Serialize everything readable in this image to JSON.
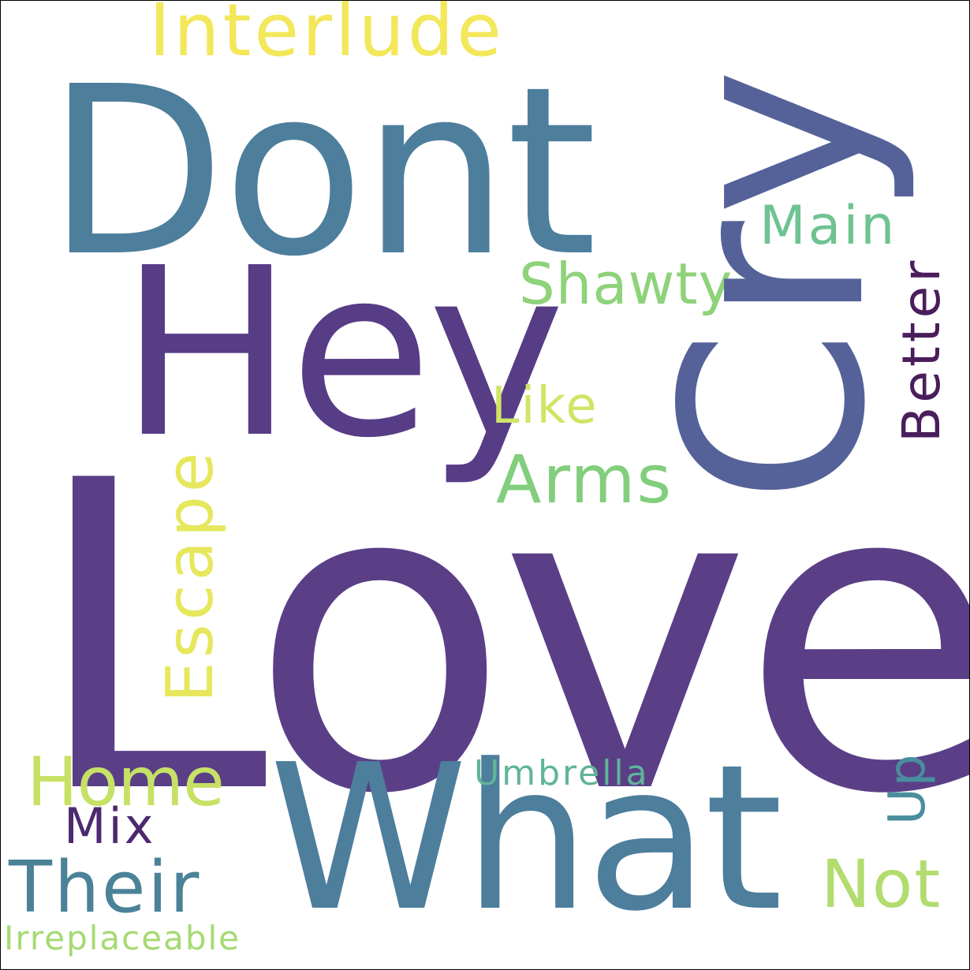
{
  "words": {
    "love": {
      "text": "Love",
      "color": "#5a3f87"
    },
    "dont": {
      "text": "Dont",
      "color": "#4d7e9c"
    },
    "cry": {
      "text": "Cry",
      "color": "#556299"
    },
    "hey": {
      "text": "Hey",
      "color": "#573c86"
    },
    "what": {
      "text": "What",
      "color": "#4d7e9c"
    },
    "interlude": {
      "text": "Interlude",
      "color": "#f3e75a"
    },
    "main": {
      "text": "Main",
      "color": "#6ec392"
    },
    "shawty": {
      "text": "Shawty",
      "color": "#8ed27a"
    },
    "better": {
      "text": "Better",
      "color": "#4a1d5c"
    },
    "like": {
      "text": "Like",
      "color": "#d0e566"
    },
    "arms": {
      "text": "Arms",
      "color": "#81ce7c"
    },
    "escape": {
      "text": "Escape",
      "color": "#e6e75c"
    },
    "home": {
      "text": "Home",
      "color": "#c6e165"
    },
    "mix": {
      "text": "Mix",
      "color": "#4c2a6f"
    },
    "their": {
      "text": "Their",
      "color": "#4b8298"
    },
    "umbrella": {
      "text": "Umbrella",
      "color": "#5fb49a"
    },
    "up": {
      "text": "Up",
      "color": "#4a8e9e"
    },
    "not": {
      "text": "Not",
      "color": "#b2dc6d"
    },
    "irreplaceable": {
      "text": "Irreplaceable",
      "color": "#a6da72"
    }
  }
}
